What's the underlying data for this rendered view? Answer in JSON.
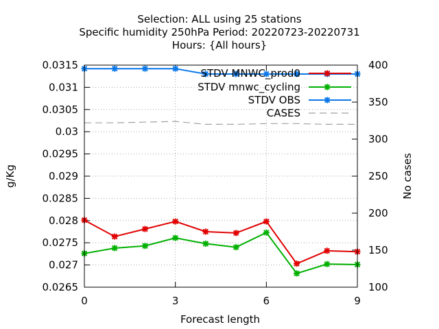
{
  "chart_data": {
    "type": "line",
    "title_lines": [
      "Selection: ALL using    25 stations",
      "Specific humidity 250hPa   Period: 20220723-20220731",
      "Hours: {All hours}"
    ],
    "xlabel": "Forecast length",
    "ylabel": "g/Kg",
    "y2label": "No cases",
    "x": [
      0,
      1,
      2,
      3,
      4,
      5,
      6,
      7,
      8,
      9
    ],
    "xlim": [
      0,
      9
    ],
    "xticks": [
      0,
      3,
      6,
      9
    ],
    "ylim": [
      0.0265,
      0.0315
    ],
    "yticks": [
      "0.0265",
      "0.027",
      "0.0275",
      "0.028",
      "0.0285",
      "0.029",
      "0.0295",
      "0.03",
      "0.0305",
      "0.031",
      "0.0315"
    ],
    "y2lim": [
      100,
      400
    ],
    "y2ticks": [
      "100",
      "150",
      "200",
      "250",
      "300",
      "350",
      "400"
    ],
    "grid": true,
    "legend_position": "top-right",
    "series": [
      {
        "name": "STDV MNWC_prod0",
        "axis": "y",
        "color": "#e00000",
        "style": "line-points",
        "values": [
          0.02801,
          0.02764,
          0.02781,
          0.02798,
          0.02775,
          0.02772,
          0.02798,
          0.02703,
          0.02732,
          0.0273
        ]
      },
      {
        "name": "STDV mnwc_cycling",
        "axis": "y",
        "color": "#00b000",
        "style": "line-points",
        "values": [
          0.02726,
          0.02738,
          0.02743,
          0.02761,
          0.02748,
          0.0274,
          0.02773,
          0.02681,
          0.02702,
          0.02701
        ]
      },
      {
        "name": "STDV OBS",
        "axis": "y",
        "color": "#0a78e8",
        "style": "line-points",
        "values": [
          0.03142,
          0.03142,
          0.03142,
          0.03142,
          0.0313,
          0.0313,
          0.0313,
          0.0313,
          0.0313,
          0.0313
        ]
      },
      {
        "name": "CASES",
        "axis": "y2",
        "color": "#a0a0a0",
        "style": "dashed",
        "values": [
          322,
          322,
          323,
          324,
          320,
          320,
          321,
          321,
          320,
          320
        ]
      }
    ]
  }
}
